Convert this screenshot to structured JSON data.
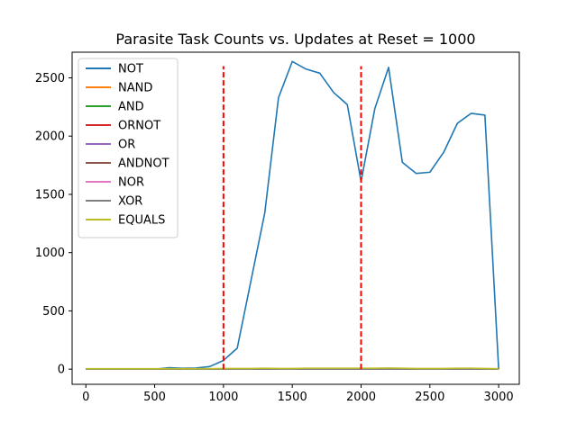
{
  "chart_data": {
    "type": "line",
    "title": "Parasite Task Counts vs. Updates at Reset = 1000",
    "xlabel": "",
    "ylabel": "",
    "xlim": [
      -100,
      3150
    ],
    "ylim": [
      -130,
      2720
    ],
    "x_ticks": [
      0,
      500,
      1000,
      1500,
      2000,
      2500,
      3000
    ],
    "y_ticks": [
      0,
      500,
      1000,
      1500,
      2000,
      2500
    ],
    "x": [
      0,
      100,
      200,
      300,
      400,
      500,
      600,
      700,
      800,
      900,
      1000,
      1100,
      1200,
      1300,
      1400,
      1500,
      1600,
      1700,
      1800,
      1900,
      2000,
      2100,
      2200,
      2300,
      2400,
      2500,
      2600,
      2700,
      2800,
      2900,
      3000
    ],
    "series": [
      {
        "name": "NOT",
        "color": "#1f77b4",
        "values": [
          0,
          0,
          0,
          0,
          0,
          0,
          12,
          8,
          10,
          22,
          75,
          180,
          760,
          1340,
          2330,
          2640,
          2575,
          2540,
          2375,
          2270,
          1610,
          2235,
          2590,
          1775,
          1680,
          1690,
          1860,
          2110,
          2195,
          2180,
          0
        ]
      },
      {
        "name": "NAND",
        "color": "#ff7f0e",
        "values": [
          0,
          0,
          0,
          0,
          0,
          0,
          0,
          0,
          0,
          0,
          0,
          0,
          0,
          2,
          0,
          0,
          2,
          2,
          2,
          2,
          2,
          2,
          4,
          2,
          2,
          0,
          0,
          2,
          2,
          2,
          0
        ]
      },
      {
        "name": "AND",
        "color": "#2ca02c",
        "values": [
          0,
          0,
          0,
          0,
          0,
          0,
          0,
          0,
          0,
          0,
          0,
          0,
          0,
          0,
          0,
          0,
          0,
          0,
          0,
          0,
          0,
          0,
          0,
          0,
          0,
          0,
          0,
          0,
          0,
          0,
          0
        ]
      },
      {
        "name": "ORNOT",
        "color": "#d62728",
        "values": [
          0,
          0,
          0,
          0,
          0,
          0,
          0,
          0,
          0,
          0,
          0,
          0,
          0,
          0,
          0,
          0,
          0,
          0,
          0,
          0,
          0,
          0,
          0,
          0,
          0,
          0,
          0,
          0,
          0,
          0,
          0
        ]
      },
      {
        "name": "OR",
        "color": "#9467bd",
        "values": [
          0,
          0,
          0,
          0,
          0,
          0,
          0,
          0,
          0,
          0,
          0,
          0,
          0,
          0,
          0,
          0,
          0,
          0,
          0,
          0,
          0,
          0,
          0,
          0,
          0,
          0,
          0,
          0,
          0,
          0,
          0
        ]
      },
      {
        "name": "ANDNOT",
        "color": "#8c564b",
        "values": [
          0,
          0,
          0,
          0,
          0,
          0,
          0,
          0,
          0,
          0,
          0,
          0,
          0,
          0,
          0,
          0,
          0,
          0,
          0,
          0,
          0,
          0,
          0,
          0,
          0,
          0,
          0,
          0,
          0,
          0,
          0
        ]
      },
      {
        "name": "NOR",
        "color": "#e377c2",
        "values": [
          0,
          0,
          0,
          0,
          0,
          0,
          0,
          0,
          0,
          0,
          0,
          0,
          0,
          0,
          0,
          0,
          0,
          0,
          0,
          0,
          0,
          0,
          0,
          0,
          0,
          0,
          0,
          0,
          0,
          0,
          0
        ]
      },
      {
        "name": "XOR",
        "color": "#7f7f7f",
        "values": [
          0,
          0,
          0,
          0,
          0,
          0,
          0,
          0,
          0,
          0,
          0,
          0,
          0,
          0,
          0,
          0,
          0,
          0,
          0,
          0,
          0,
          0,
          0,
          0,
          0,
          0,
          0,
          0,
          0,
          0,
          0
        ]
      },
      {
        "name": "EQUALS",
        "color": "#bcbd22",
        "values": [
          4,
          4,
          4,
          4,
          4,
          4,
          4,
          4,
          4,
          4,
          6,
          6,
          6,
          8,
          6,
          6,
          8,
          8,
          8,
          8,
          8,
          8,
          10,
          8,
          6,
          6,
          6,
          8,
          8,
          6,
          4
        ]
      }
    ],
    "vlines": [
      {
        "x": 1000,
        "y_range": [
          0,
          2600
        ],
        "color": "#ff0000",
        "style": "dashed"
      },
      {
        "x": 2000,
        "y_range": [
          0,
          2600
        ],
        "color": "#ff0000",
        "style": "dashed"
      }
    ],
    "legend_position": "top-left",
    "grid": false
  }
}
